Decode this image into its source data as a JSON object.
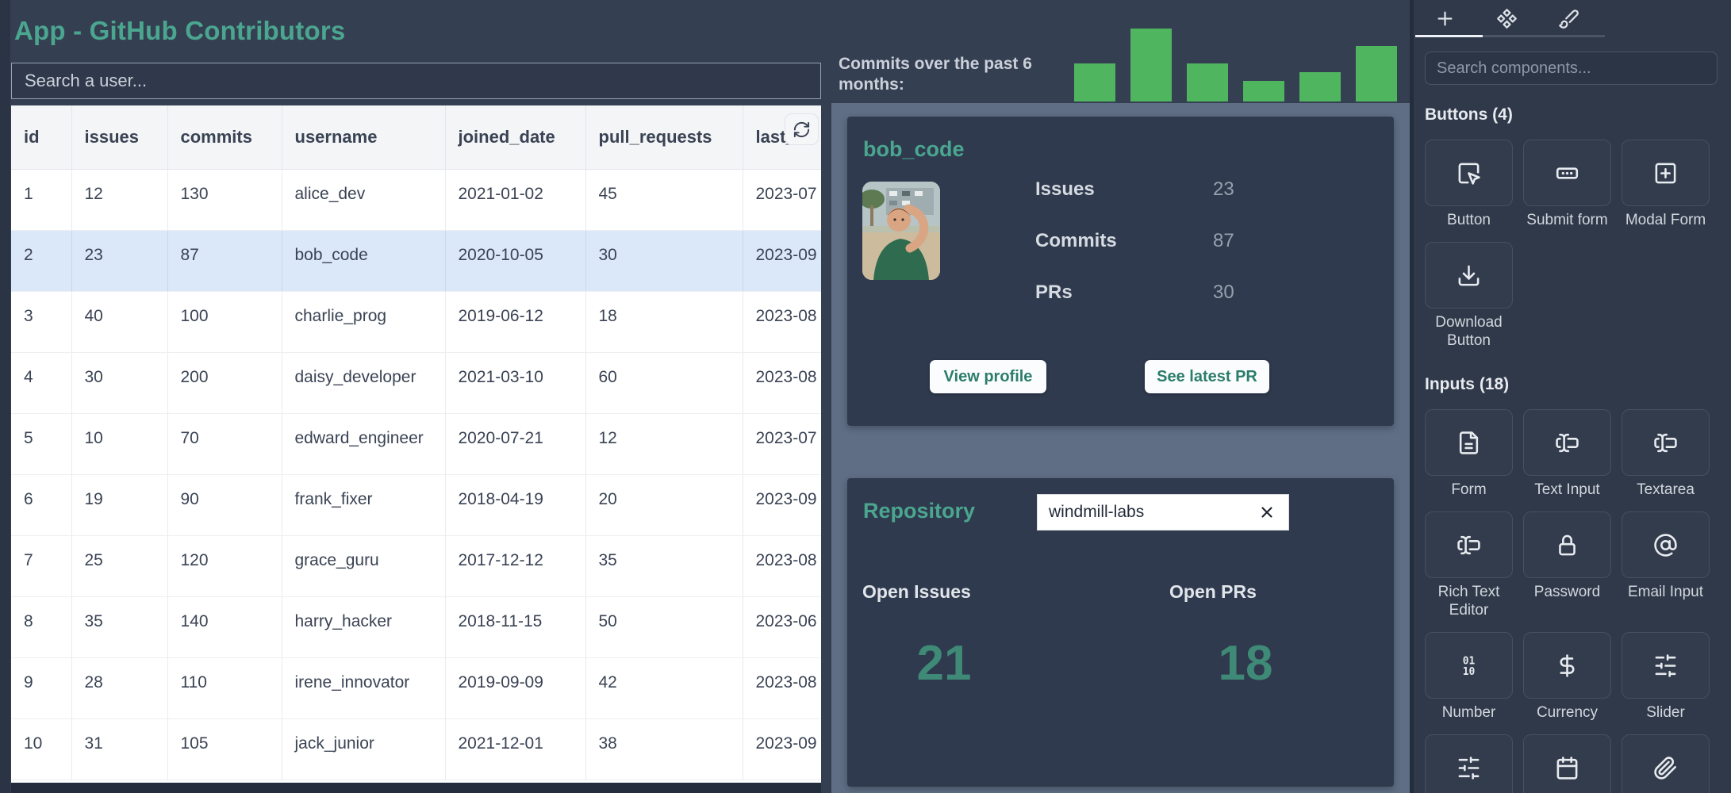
{
  "app": {
    "title": "App - GitHub Contributors"
  },
  "left": {
    "search_placeholder": "Search a user...",
    "table": {
      "columns": [
        "id",
        "issues",
        "commits",
        "username",
        "joined_date",
        "pull_requests",
        "last_ac"
      ],
      "rows": [
        {
          "cells": [
            "1",
            "12",
            "130",
            "alice_dev",
            "2021-01-02",
            "45",
            "2023-07"
          ],
          "highlighted": false
        },
        {
          "cells": [
            "2",
            "23",
            "87",
            "bob_code",
            "2020-10-05",
            "30",
            "2023-09"
          ],
          "highlighted": true
        },
        {
          "cells": [
            "3",
            "40",
            "100",
            "charlie_prog",
            "2019-06-12",
            "18",
            "2023-08"
          ],
          "highlighted": false
        },
        {
          "cells": [
            "4",
            "30",
            "200",
            "daisy_developer",
            "2021-03-10",
            "60",
            "2023-08"
          ],
          "highlighted": false
        },
        {
          "cells": [
            "5",
            "10",
            "70",
            "edward_engineer",
            "2020-07-21",
            "12",
            "2023-07"
          ],
          "highlighted": false
        },
        {
          "cells": [
            "6",
            "19",
            "90",
            "frank_fixer",
            "2018-04-19",
            "20",
            "2023-09"
          ],
          "highlighted": false
        },
        {
          "cells": [
            "7",
            "25",
            "120",
            "grace_guru",
            "2017-12-12",
            "35",
            "2023-08"
          ],
          "highlighted": false
        },
        {
          "cells": [
            "8",
            "35",
            "140",
            "harry_hacker",
            "2018-11-15",
            "50",
            "2023-06"
          ],
          "highlighted": false
        },
        {
          "cells": [
            "9",
            "28",
            "110",
            "irene_innovator",
            "2019-09-09",
            "42",
            "2023-08"
          ],
          "highlighted": false
        },
        {
          "cells": [
            "10",
            "31",
            "105",
            "jack_junior",
            "2021-12-01",
            "38",
            "2023-09"
          ],
          "highlighted": false
        }
      ]
    }
  },
  "chart_data": {
    "type": "bar",
    "title": "Commits over the past 6 months:",
    "categories": [
      "",
      "",
      "",
      "",
      "",
      ""
    ],
    "values": [
      13,
      25,
      13,
      7,
      10,
      19
    ],
    "ylim": [
      0,
      25
    ],
    "grid": false,
    "color": "#4FB55E"
  },
  "middle": {
    "chart_label": "Commits over the past 6 months:",
    "user_card": {
      "title": "bob_code",
      "stats": [
        {
          "label": "Issues",
          "value": "23"
        },
        {
          "label": "Commits",
          "value": "87"
        },
        {
          "label": "PRs",
          "value": "30"
        }
      ],
      "buttons": [
        {
          "label": "View profile"
        },
        {
          "label": "See latest PR"
        }
      ]
    },
    "repo_card": {
      "title": "Repository",
      "input_value": "windmill-labs",
      "stats": [
        {
          "label": "Open Issues",
          "value": "21"
        },
        {
          "label": "Open PRs",
          "value": "18"
        }
      ]
    }
  },
  "sidebar": {
    "tabs": [
      {
        "icon": "plus",
        "active": true
      },
      {
        "icon": "component",
        "active": false
      },
      {
        "icon": "brush",
        "active": false
      }
    ],
    "search_placeholder": "Search components...",
    "sections": [
      {
        "title": "Buttons (4)",
        "items": [
          {
            "label": "Button",
            "icon": "square-mouse-pointer"
          },
          {
            "label": "Submit form",
            "icon": "dots-rect"
          },
          {
            "label": "Modal Form",
            "icon": "square-plus"
          },
          {
            "label": "Download Button",
            "icon": "download"
          }
        ]
      },
      {
        "title": "Inputs (18)",
        "items": [
          {
            "label": "Form",
            "icon": "file-text"
          },
          {
            "label": "Text Input",
            "icon": "text-cursor-input"
          },
          {
            "label": "Textarea",
            "icon": "text-cursor-input"
          },
          {
            "label": "Rich Text Editor",
            "icon": "text-cursor-input"
          },
          {
            "label": "Password",
            "icon": "lock"
          },
          {
            "label": "Email Input",
            "icon": "at-sign"
          },
          {
            "label": "Number",
            "icon": "binary"
          },
          {
            "label": "Currency",
            "icon": "dollar-sign"
          },
          {
            "label": "Slider",
            "icon": "sliders"
          },
          {
            "label": "",
            "icon": "sliders"
          },
          {
            "label": "",
            "icon": "calendar"
          },
          {
            "label": "",
            "icon": "paperclip"
          }
        ]
      }
    ]
  },
  "colors": {
    "accent_teal": "#4BA68F",
    "big_number_teal": "#3F8977",
    "bar_green": "#4FB55E",
    "panel_slate": "#5F6E85",
    "selected_row": "#DBE8FA"
  }
}
